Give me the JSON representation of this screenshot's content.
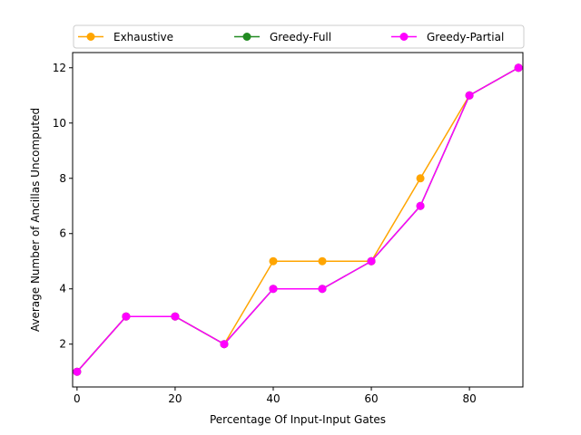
{
  "chart_data": {
    "type": "line",
    "title": "",
    "xlabel": "Percentage Of Input-Input Gates",
    "ylabel": "Average Number of Ancillas Uncomputed",
    "xlim": [
      -0.9,
      90.9
    ],
    "ylim": [
      0.45,
      12.55
    ],
    "xticks": [
      0,
      20,
      40,
      60,
      80
    ],
    "yticks": [
      2,
      4,
      6,
      8,
      10,
      12
    ],
    "grid": false,
    "legend_position": "top",
    "x": [
      0,
      10,
      20,
      30,
      40,
      50,
      60,
      70,
      80,
      90
    ],
    "series": [
      {
        "name": "Exhaustive",
        "color": "#ffa500",
        "values": [
          1,
          3,
          3,
          2,
          5,
          5,
          5,
          8,
          11,
          12
        ]
      },
      {
        "name": "Greedy-Full",
        "color": "#228b22",
        "values": [
          1,
          3,
          3,
          2,
          4,
          4,
          5,
          7,
          11,
          12
        ]
      },
      {
        "name": "Greedy-Partial",
        "color": "#ff00ff",
        "values": [
          1,
          3,
          3,
          2,
          4,
          4,
          5,
          7,
          11,
          12
        ]
      }
    ]
  }
}
